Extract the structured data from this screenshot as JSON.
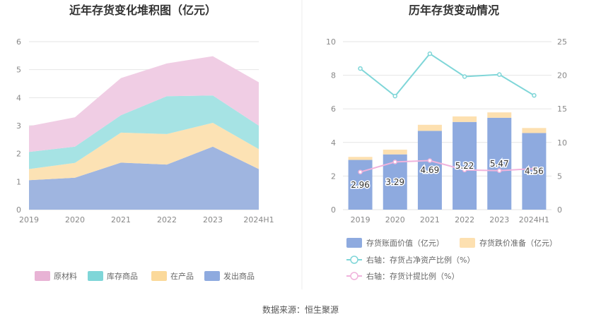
{
  "source": "数据来源：恒生聚源",
  "chart_data": [
    {
      "type": "area",
      "stacked": true,
      "title": "近年存货变化堆积图（亿元）",
      "categories": [
        "2019",
        "2020",
        "2021",
        "2022",
        "2023",
        "2024H1"
      ],
      "ylim": [
        0,
        6
      ],
      "yticks": [
        "0",
        "1",
        "2",
        "3",
        "4",
        "5",
        "6"
      ],
      "grid": true,
      "legend_position": "bottom",
      "series": [
        {
          "name": "发出商品",
          "color": "#9fb5e0",
          "values": [
            1.05,
            1.14,
            1.68,
            1.61,
            2.25,
            1.45
          ]
        },
        {
          "name": "在产品",
          "color": "#fce2b4",
          "values": [
            0.4,
            0.53,
            1.07,
            1.09,
            0.85,
            0.71
          ]
        },
        {
          "name": "库存商品",
          "color": "#a6e3e4",
          "values": [
            0.61,
            0.58,
            0.62,
            1.35,
            0.98,
            0.84
          ]
        },
        {
          "name": "原材料",
          "color": "#f0cde4",
          "values": [
            0.92,
            1.05,
            1.33,
            1.17,
            1.4,
            1.55
          ]
        }
      ],
      "legend_order": [
        {
          "name": "原材料",
          "color": "#e8b3d5"
        },
        {
          "name": "库存商品",
          "color": "#7fd6d8"
        },
        {
          "name": "在产品",
          "color": "#fbd99a"
        },
        {
          "name": "发出商品",
          "color": "#8eaadf"
        }
      ]
    },
    {
      "type": "bar",
      "title": "历年存货变动情况",
      "categories": [
        "2019",
        "2020",
        "2021",
        "2022",
        "2023",
        "2024H1"
      ],
      "ylim": [
        0,
        10
      ],
      "yticks": [
        "0",
        "2",
        "4",
        "6",
        "8",
        "10"
      ],
      "y2lim": [
        0,
        25
      ],
      "y2ticks": [
        "0",
        "5",
        "10",
        "15",
        "20",
        "25"
      ],
      "grid": true,
      "series": [
        {
          "name": "存货账面价值（亿元）",
          "kind": "bar",
          "axis": "left",
          "color": "#8eaadf",
          "values": [
            2.96,
            3.29,
            4.69,
            5.22,
            5.47,
            4.56
          ],
          "labels": [
            "2.96",
            "3.29",
            "4.69",
            "5.22",
            "5.47",
            "4.56"
          ]
        },
        {
          "name": "存货跌价准备（亿元）",
          "kind": "bar-stack",
          "axis": "left",
          "color": "#fde0b0",
          "values": [
            0.18,
            0.28,
            0.36,
            0.33,
            0.32,
            0.3
          ]
        },
        {
          "name": "右轴：存货占净资产比例（%）",
          "kind": "line",
          "axis": "right",
          "color": "#7fd6d8",
          "values": [
            21.0,
            16.9,
            23.2,
            19.8,
            20.1,
            17.0
          ]
        },
        {
          "name": "右轴：存货计提比例（%）",
          "kind": "line",
          "axis": "right",
          "color": "#f0b3dc",
          "values": [
            5.6,
            7.1,
            7.3,
            5.9,
            5.8,
            6.1
          ]
        }
      ]
    }
  ]
}
